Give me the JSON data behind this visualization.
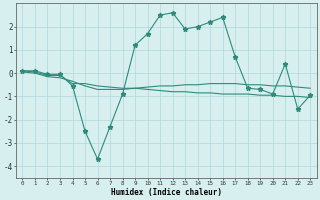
{
  "xlabel": "Humidex (Indice chaleur)",
  "x": [
    0,
    1,
    2,
    3,
    4,
    5,
    6,
    7,
    8,
    9,
    10,
    11,
    12,
    13,
    14,
    15,
    16,
    17,
    18,
    19,
    20,
    21,
    22,
    23
  ],
  "line1": [
    0.1,
    0.1,
    -0.05,
    -0.05,
    -0.55,
    -2.5,
    -3.7,
    -2.3,
    -0.9,
    1.2,
    1.7,
    2.5,
    2.6,
    1.9,
    2.0,
    2.2,
    2.4,
    0.7,
    -0.65,
    -0.7,
    -0.9,
    0.4,
    -1.55,
    -0.95
  ],
  "line2": [
    0.1,
    0.05,
    -0.1,
    -0.1,
    -0.45,
    -0.45,
    -0.55,
    -0.6,
    -0.65,
    -0.65,
    -0.7,
    -0.75,
    -0.8,
    -0.8,
    -0.85,
    -0.85,
    -0.9,
    -0.9,
    -0.9,
    -0.95,
    -0.95,
    -1.0,
    -1.0,
    -1.05
  ],
  "line3": [
    0.05,
    0.0,
    -0.15,
    -0.2,
    -0.35,
    -0.55,
    -0.7,
    -0.7,
    -0.7,
    -0.65,
    -0.6,
    -0.55,
    -0.55,
    -0.5,
    -0.5,
    -0.45,
    -0.45,
    -0.45,
    -0.5,
    -0.5,
    -0.55,
    -0.55,
    -0.6,
    -0.65
  ],
  "color": "#2e8b7a",
  "bg_color": "#d8eff0",
  "grid_color": "#b0d8da",
  "ylim": [
    -4.5,
    3.0
  ],
  "xlim": [
    -0.5,
    23.5
  ],
  "yticks": [
    -4,
    -3,
    -2,
    -1,
    0,
    1,
    2
  ],
  "xticks": [
    0,
    1,
    2,
    3,
    4,
    5,
    6,
    7,
    8,
    9,
    10,
    11,
    12,
    13,
    14,
    15,
    16,
    17,
    18,
    19,
    20,
    21,
    22,
    23
  ],
  "xtick_labels": [
    "0",
    "1",
    "2",
    "3",
    "4",
    "5",
    "6",
    "7",
    "8",
    "9",
    "10",
    "11",
    "12",
    "13",
    "14",
    "15",
    "16",
    "17",
    "18",
    "19",
    "20",
    "21",
    "22",
    "23"
  ]
}
